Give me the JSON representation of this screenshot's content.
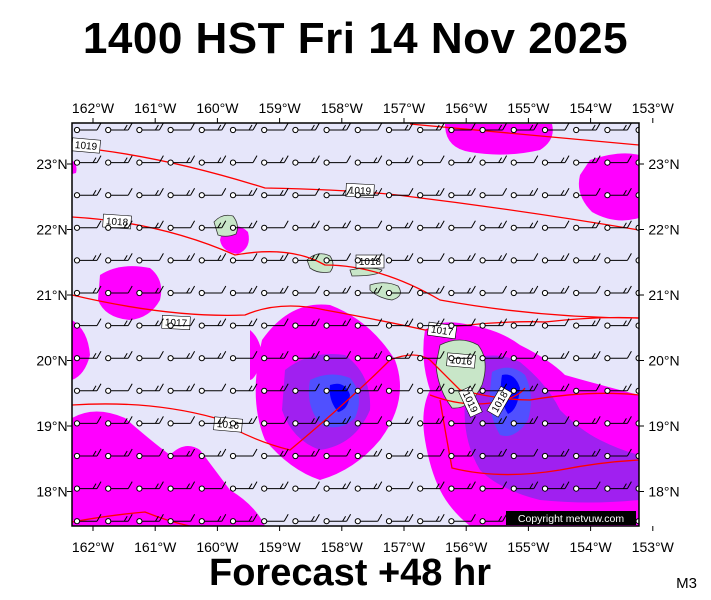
{
  "title": "1400 HST Fri 14 Nov 2025",
  "footer": "Forecast +48 hr",
  "model": "M3",
  "copyright": "Copyright metvuw.com",
  "map": {
    "lon_labels": [
      "162°W",
      "161°W",
      "160°W",
      "159°W",
      "158°W",
      "157°W",
      "156°W",
      "155°W",
      "154°W",
      "153°W"
    ],
    "lat_labels": [
      "23°N",
      "22°N",
      "21°N",
      "20°N",
      "19°N",
      "18°N"
    ],
    "isobar_labels": [
      "1019",
      "1019",
      "1018",
      "1018",
      "1017",
      "1017",
      "1016",
      "1016",
      "1019",
      "1018"
    ],
    "colors": {
      "background": "#e6e6fa",
      "precip_light": "#ff00ff",
      "precip_medium": "#a020f0",
      "precip_heavy": "#5050ff",
      "precip_extreme": "#0000ff",
      "isobar": "#ff0000",
      "land": "#c8e6c8"
    }
  }
}
